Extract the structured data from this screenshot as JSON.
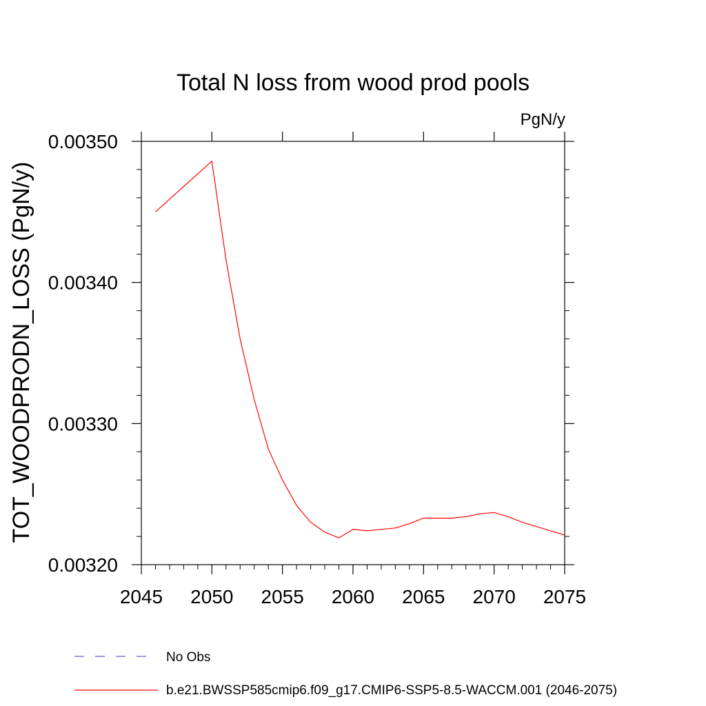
{
  "chart_data": {
    "type": "line",
    "title": "Total N loss from wood prod pools",
    "units_label": "PgN/y",
    "ylabel": "TOT_WOODPRODN_LOSS  (PgN/y)",
    "xlabel": "",
    "xlim": [
      2045,
      2075
    ],
    "ylim": [
      0.0032,
      0.0035
    ],
    "x_ticks": [
      "2045",
      "2050",
      "2055",
      "2060",
      "2065",
      "2070",
      "2075"
    ],
    "y_ticks": [
      "0.00320",
      "0.00330",
      "0.00340",
      "0.00350"
    ],
    "grid": false,
    "series": [
      {
        "name": "b.e21.BWSSP585cmip6.f09_g17.CMIP6-SSP5-8.5-WACCM.001 (2046-2075)",
        "color": "#ff0000",
        "x": [
          2046,
          2047,
          2048,
          2049,
          2050,
          2051,
          2052,
          2053,
          2054,
          2055,
          2056,
          2057,
          2058,
          2059,
          2060,
          2061,
          2062,
          2063,
          2064,
          2065,
          2066,
          2067,
          2068,
          2069,
          2070,
          2071,
          2072,
          2073,
          2074,
          2075
        ],
        "values": [
          0.00345,
          0.003459,
          0.003468,
          0.003477,
          0.003486,
          0.003416,
          0.00336,
          0.003317,
          0.003282,
          0.00326,
          0.003242,
          0.00323,
          0.003223,
          0.003219,
          0.003225,
          0.003224,
          0.003225,
          0.003226,
          0.003229,
          0.003233,
          0.003233,
          0.003233,
          0.003234,
          0.003236,
          0.003237,
          0.003234,
          0.00323,
          0.003227,
          0.003224,
          0.003221
        ]
      }
    ],
    "legend": {
      "placement": "bottom",
      "entries": [
        {
          "label": "No Obs",
          "color": "#6a5acd",
          "style": "dashed"
        },
        {
          "label": "b.e21.BWSSP585cmip6.f09_g17.CMIP6-SSP5-8.5-WACCM.001 (2046-2075)",
          "color": "#ff0000",
          "style": "solid"
        }
      ]
    }
  }
}
